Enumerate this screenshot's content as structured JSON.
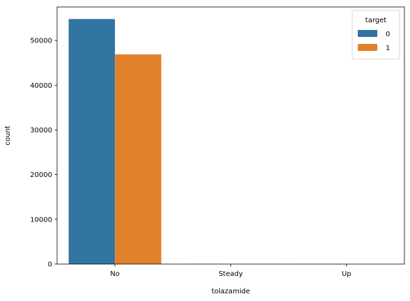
{
  "chart_data": {
    "type": "bar",
    "xlabel": "tolazamide",
    "ylabel": "count",
    "categories": [
      "No",
      "Steady",
      "Up"
    ],
    "series": [
      {
        "name": "0",
        "color": "#3274a1",
        "values": [
          54800,
          30,
          10
        ]
      },
      {
        "name": "1",
        "color": "#e1812c",
        "values": [
          46900,
          15,
          1
        ]
      }
    ],
    "ylim": [
      0,
      57500
    ],
    "yticks": [
      0,
      10000,
      20000,
      30000,
      40000,
      50000
    ],
    "legend": {
      "title": "target",
      "placement": "top-right"
    },
    "grid": false
  }
}
